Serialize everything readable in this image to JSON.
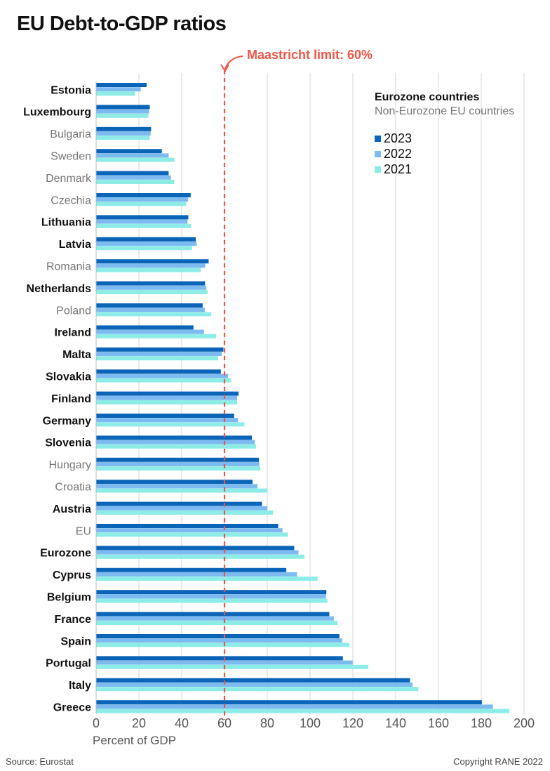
{
  "chart_data": {
    "type": "bar",
    "orientation": "horizontal",
    "title": "EU Debt-to-GDP ratios",
    "xlabel": "Percent of GDP",
    "ylabel": "",
    "xlim": [
      0,
      200
    ],
    "xticks": [
      0,
      20,
      40,
      60,
      80,
      100,
      120,
      140,
      160,
      180,
      200
    ],
    "grid": true,
    "categories": [
      "Estonia",
      "Luxembourg",
      "Bulgaria",
      "Sweden",
      "Denmark",
      "Czechia",
      "Lithuania",
      "Latvia",
      "Romania",
      "Netherlands",
      "Poland",
      "Ireland",
      "Malta",
      "Slovakia",
      "Finland",
      "Germany",
      "Slovenia",
      "Hungary",
      "Croatia",
      "Austria",
      "EU",
      "Eurozone",
      "Cyprus",
      "Belgium",
      "France",
      "Spain",
      "Portugal",
      "Italy",
      "Greece"
    ],
    "eurozone": [
      true,
      true,
      false,
      false,
      false,
      false,
      true,
      true,
      false,
      true,
      false,
      true,
      true,
      true,
      true,
      true,
      true,
      false,
      false,
      true,
      false,
      true,
      true,
      true,
      true,
      true,
      true,
      true,
      true
    ],
    "series": [
      {
        "name": "2023",
        "color": "#0a64b8",
        "values": [
          23.6,
          25.1,
          25.7,
          30.7,
          33.9,
          44.2,
          43.1,
          46.6,
          52.6,
          50.9,
          49.8,
          45.5,
          59.5,
          58.3,
          66.6,
          64.5,
          72.8,
          76.1,
          73.1,
          77.5,
          85.1,
          92.6,
          88.9,
          107.6,
          109.0,
          113.7,
          115.3,
          146.7,
          180.3
        ]
      },
      {
        "name": "2022",
        "color": "#7dbaf0",
        "values": [
          20.9,
          24.8,
          25.5,
          33.9,
          35.0,
          43.0,
          42.7,
          47.0,
          51.0,
          51.5,
          50.8,
          50.4,
          58.7,
          61.7,
          65.9,
          66.3,
          74.2,
          76.3,
          75.4,
          80.0,
          87.1,
          94.6,
          93.9,
          107.5,
          111.1,
          115.0,
          119.9,
          147.9,
          185.5
        ]
      },
      {
        "name": "2021",
        "color": "#8eece6",
        "values": [
          18.1,
          24.5,
          25.0,
          36.6,
          36.6,
          42.1,
          44.3,
          44.8,
          48.9,
          52.1,
          53.8,
          56.1,
          57.0,
          63.1,
          65.9,
          69.3,
          74.8,
          76.7,
          80.0,
          82.7,
          89.6,
          97.4,
          103.5,
          108.1,
          112.8,
          118.4,
          127.2,
          150.6,
          193.1
        ]
      }
    ],
    "reference_line": {
      "value": 60,
      "label": "Maastricht limit: 60%",
      "color": "#ec5548"
    },
    "legend": {
      "position": "top-right",
      "eurozone_label": "Eurozone countries",
      "non_eurozone_label": "Non-Eurozone EU countries"
    }
  },
  "footer": {
    "source": "Source: Eurostat",
    "copyright": "Copyright RANE 2022"
  }
}
